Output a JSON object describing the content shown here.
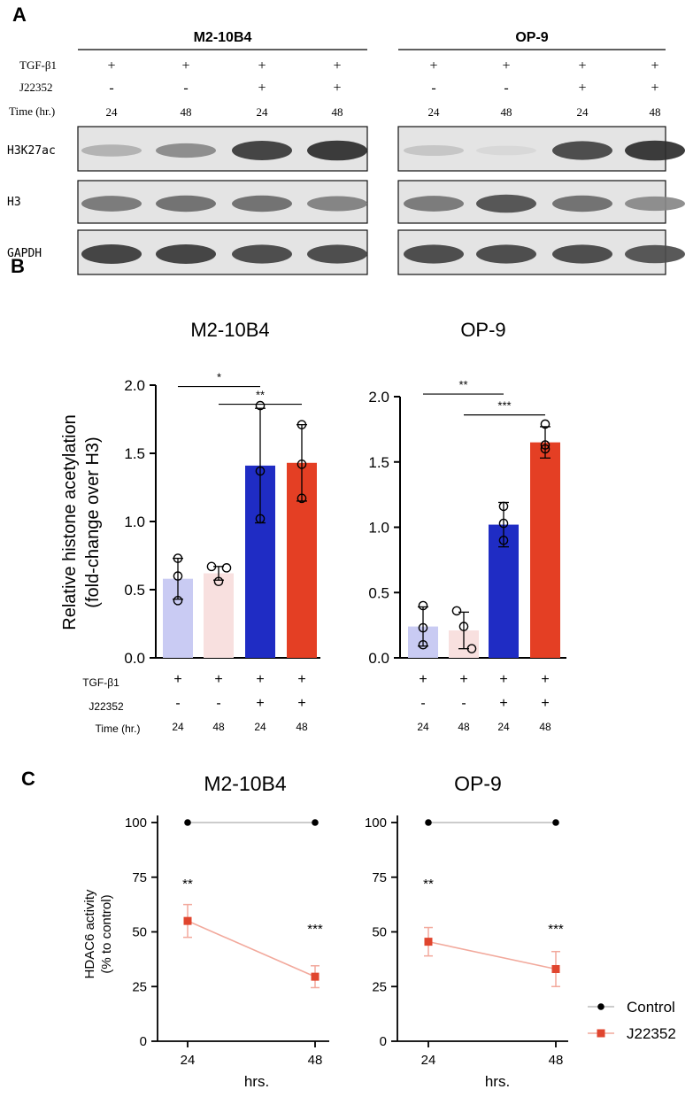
{
  "panelA": {
    "letter": "A",
    "row_labels": {
      "tgf": "TGF-β1",
      "j": "J22352",
      "time": "Time (hr.)"
    },
    "bands": [
      "H3K27ac",
      "H3",
      "GAPDH"
    ],
    "groups": [
      {
        "title": "M2-10B4",
        "tgf": [
          "+",
          "+",
          "+",
          "+"
        ],
        "j": [
          "-",
          "-",
          "+",
          "+"
        ],
        "time": [
          "24",
          "48",
          "24",
          "48"
        ]
      },
      {
        "title": "OP-9",
        "tgf": [
          "+",
          "+",
          "+",
          "+"
        ],
        "j": [
          "-",
          "-",
          "+",
          "+"
        ],
        "time": [
          "24",
          "48",
          "24",
          "48"
        ]
      }
    ],
    "intensity": {
      "H3K27ac": [
        [
          0.25,
          0.45,
          0.85,
          0.9
        ],
        [
          0.15,
          0.05,
          0.8,
          0.9
        ]
      ],
      "H3": [
        [
          0.55,
          0.6,
          0.6,
          0.5
        ],
        [
          0.55,
          0.75,
          0.6,
          0.45
        ]
      ],
      "GAPDH": [
        [
          0.85,
          0.85,
          0.8,
          0.8
        ],
        [
          0.8,
          0.8,
          0.8,
          0.75
        ]
      ]
    }
  },
  "panelB": {
    "letter": "B"
  },
  "panelC": {
    "letter": "C"
  },
  "chart_data": [
    {
      "type": "bar",
      "title": "M2-10B4",
      "ylabel": "Relative histone acetylation (fold-change over H3)",
      "ylim": [
        0,
        2.0
      ],
      "yticks": [
        "0.0",
        "0.5",
        "1.0",
        "1.5",
        "2.0"
      ],
      "categories": [
        "24",
        "48",
        "24",
        "48"
      ],
      "values": [
        0.58,
        0.62,
        1.41,
        1.43
      ],
      "errors": [
        0.15,
        0.05,
        0.42,
        0.28
      ],
      "points": [
        [
          0.73,
          0.6,
          0.42
        ],
        [
          0.67,
          0.56,
          0.66
        ],
        [
          1.85,
          1.37,
          1.02
        ],
        [
          1.71,
          1.42,
          1.17
        ]
      ],
      "colors": [
        "#c9cbf3",
        "#f8e0df",
        "#1f2cc4",
        "#e43f24"
      ],
      "row_labels": {
        "tgf": "TGF-β1",
        "j": "J22352",
        "time": "Time (hr.)"
      },
      "tgf": [
        "+",
        "+",
        "+",
        "+"
      ],
      "j": [
        "-",
        "-",
        "+",
        "+"
      ],
      "significance": [
        {
          "from": 0,
          "to": 2,
          "label": "*",
          "y": 1.99
        },
        {
          "from": 1,
          "to": 3,
          "label": "**",
          "y": 1.86
        }
      ]
    },
    {
      "type": "bar",
      "title": "OP-9",
      "ylim": [
        0,
        2.0
      ],
      "yticks": [
        "0.0",
        "0.5",
        "1.0",
        "1.5",
        "2.0"
      ],
      "categories": [
        "24",
        "48",
        "24",
        "48"
      ],
      "values": [
        0.24,
        0.21,
        1.02,
        1.65
      ],
      "errors": [
        0.15,
        0.14,
        0.17,
        0.12
      ],
      "points": [
        [
          0.4,
          0.23,
          0.1
        ],
        [
          0.36,
          0.24,
          0.07
        ],
        [
          1.16,
          1.03,
          0.9
        ],
        [
          1.79,
          1.6,
          1.63
        ]
      ],
      "colors": [
        "#c9cbf3",
        "#f8e0df",
        "#1f2cc4",
        "#e43f24"
      ],
      "tgf": [
        "+",
        "+",
        "+",
        "+"
      ],
      "j": [
        "-",
        "-",
        "+",
        "+"
      ],
      "significance": [
        {
          "from": 0,
          "to": 2,
          "label": "**",
          "y": 2.02
        },
        {
          "from": 1,
          "to": 3,
          "label": "***",
          "y": 1.86
        }
      ]
    },
    {
      "type": "line",
      "title": "M2-10B4",
      "ylabel": "HDAC6 activity (% to control)",
      "xlabel": "hrs.",
      "x": [
        24,
        48
      ],
      "xticks": [
        "24",
        "48"
      ],
      "ylim": [
        0,
        100
      ],
      "yticks": [
        "0",
        "25",
        "50",
        "75",
        "100"
      ],
      "series": [
        {
          "name": "Control",
          "values": [
            100,
            100
          ],
          "errors": [
            0,
            0
          ],
          "color": "#000000",
          "line": "#bbbbbb"
        },
        {
          "name": "J22352",
          "values": [
            55,
            29.5
          ],
          "errors": [
            7.5,
            5
          ],
          "color": "#e0452e",
          "line": "#f2a99c"
        }
      ],
      "annotations": [
        "**",
        "***"
      ]
    },
    {
      "type": "line",
      "title": "OP-9",
      "xlabel": "hrs.",
      "x": [
        24,
        48
      ],
      "xticks": [
        "24",
        "48"
      ],
      "ylim": [
        0,
        100
      ],
      "yticks": [
        "0",
        "25",
        "50",
        "75",
        "100"
      ],
      "series": [
        {
          "name": "Control",
          "values": [
            100,
            100
          ],
          "errors": [
            0,
            0
          ],
          "color": "#000000",
          "line": "#bbbbbb"
        },
        {
          "name": "J22352",
          "values": [
            45.5,
            33
          ],
          "errors": [
            6.5,
            8
          ],
          "color": "#e0452e",
          "line": "#f2a99c"
        }
      ],
      "annotations": [
        "**",
        "***"
      ]
    }
  ],
  "legend": {
    "items": [
      {
        "name": "Control",
        "color": "#000000",
        "shape": "circle",
        "line": "#bbbbbb"
      },
      {
        "name": "J22352",
        "color": "#e0452e",
        "shape": "square",
        "line": "#f2a99c"
      }
    ]
  }
}
